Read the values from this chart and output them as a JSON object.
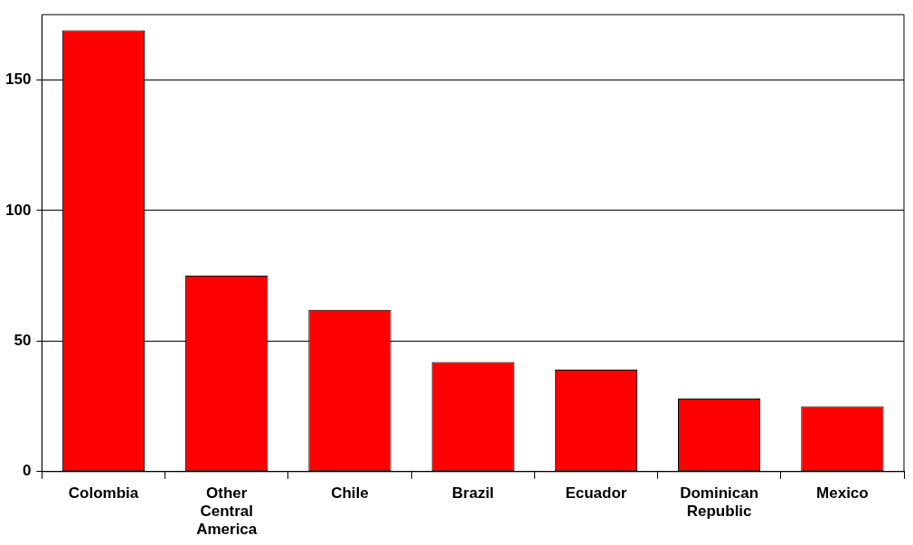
{
  "chart_data": {
    "type": "bar",
    "categories": [
      "Colombia",
      "Other Central America",
      "Chile",
      "Brazil",
      "Ecuador",
      "Dominican Republic",
      "Mexico"
    ],
    "values": [
      169,
      75,
      62,
      42,
      39,
      28,
      25
    ],
    "color": "#ff0000",
    "ylim": [
      0,
      175
    ],
    "yticks": [
      0,
      50,
      100,
      150
    ],
    "grid": "y"
  }
}
